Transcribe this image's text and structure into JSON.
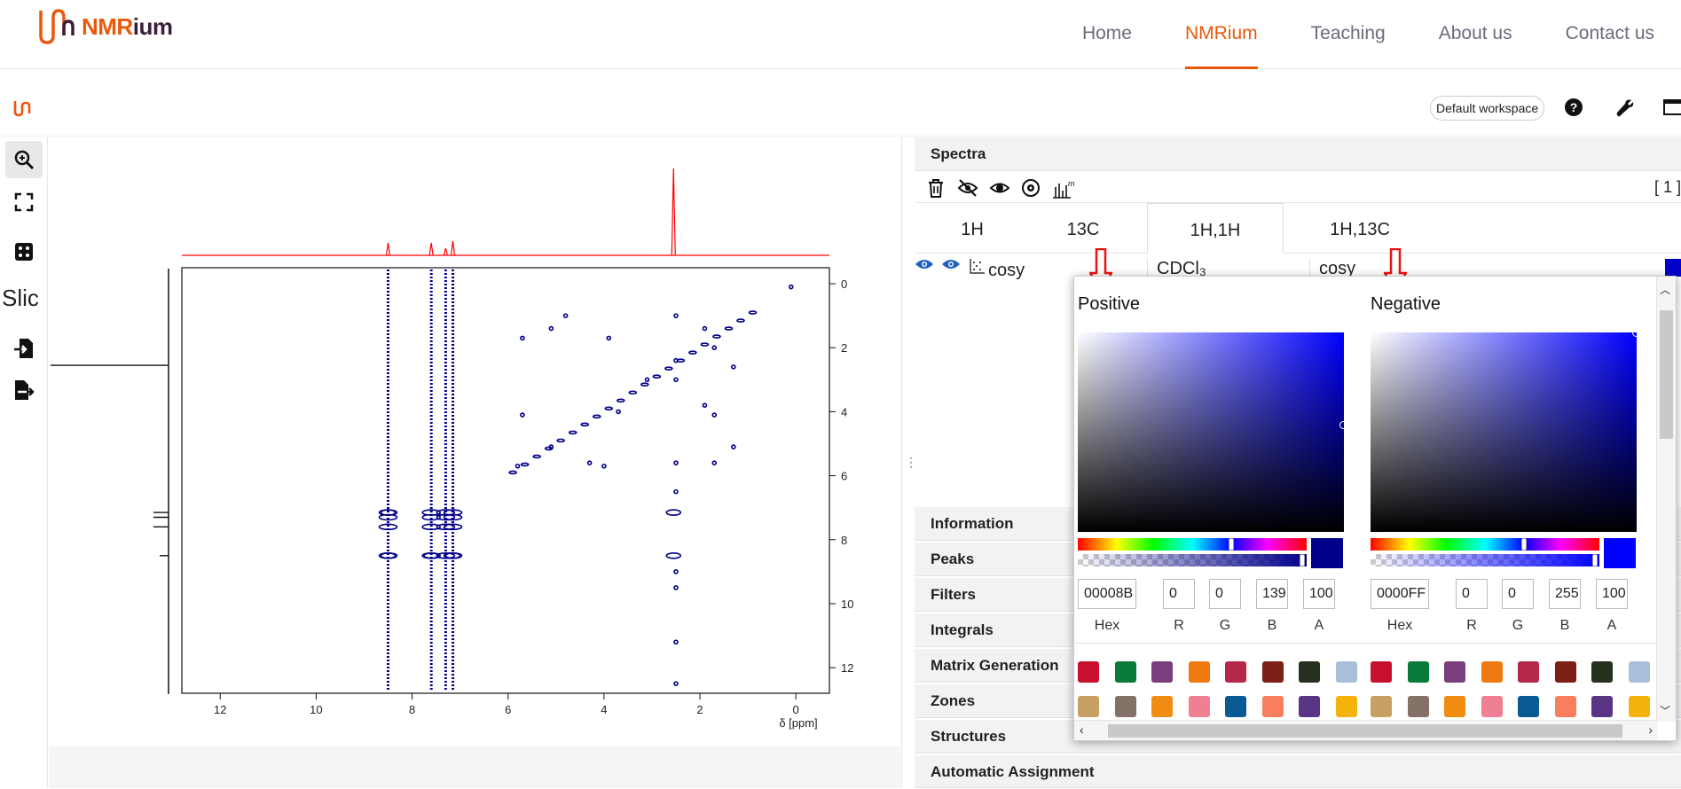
{
  "site": {
    "brand_main": "NMR",
    "brand_suffix": "ium",
    "nav": [
      {
        "label": "Home",
        "active": false
      },
      {
        "label": "NMRium",
        "active": true
      },
      {
        "label": "Teaching",
        "active": false
      },
      {
        "label": "About us",
        "active": false
      },
      {
        "label": "Contact us",
        "active": false
      }
    ]
  },
  "app_toolbar": {
    "workspace_label": "Default workspace",
    "icons": [
      "help-icon",
      "wrench-icon",
      "window-icon"
    ]
  },
  "left_tools": [
    {
      "name": "zoom-icon",
      "selected": true
    },
    {
      "name": "full-view-icon",
      "selected": false
    },
    {
      "name": "dice-icon",
      "selected": false
    },
    {
      "name": "slice-tool",
      "text": "Slic"
    },
    {
      "name": "import-icon",
      "selected": false
    },
    {
      "name": "export-icon",
      "selected": false
    }
  ],
  "plot": {
    "x_ticks": [
      "12",
      "10",
      "8",
      "6",
      "4",
      "2",
      "0"
    ],
    "y_ticks": [
      "0",
      "2",
      "4",
      "6",
      "8",
      "10",
      "12"
    ],
    "x_label": "δ [ppm]"
  },
  "chart_data": {
    "type": "scatter",
    "xlabel": "δ [ppm]",
    "ylabel": "",
    "xlim": [
      12.8,
      -0.7
    ],
    "ylim": [
      -0.5,
      12.8
    ],
    "projection_peaks_ppm": [
      8.5,
      7.6,
      7.3,
      7.15,
      2.55
    ]
  },
  "panel": {
    "spectra_title": "Spectra",
    "count": "[ 1 ]",
    "toolbar_icons": [
      "trash-icon",
      "hide-all-icon",
      "show-all-icon",
      "settings-icon",
      "add-spectrum-icon"
    ],
    "tabs": [
      {
        "label": "1H",
        "active": false
      },
      {
        "label": "13C",
        "active": false
      },
      {
        "label": "1H,1H",
        "active": true
      },
      {
        "label": "1H,13C",
        "active": false
      }
    ],
    "spectrum_row": {
      "name": "cosy",
      "solvent": "CDCl₃",
      "experiment": "cosy"
    },
    "accordions": [
      "Information",
      "Peaks",
      "Filters",
      "Integrals",
      "Matrix Generation",
      "Zones",
      "Structures",
      "Automatic Assignment"
    ]
  },
  "color_picker": {
    "positive": {
      "title": "Positive",
      "hex": "00008B",
      "r": "0",
      "g": "0",
      "b": "139",
      "a": "100",
      "color": "#00008B"
    },
    "negative": {
      "title": "Negative",
      "hex": "0000FF",
      "r": "0",
      "g": "0",
      "b": "255",
      "a": "100",
      "color": "#0000FF"
    },
    "field_labels": {
      "hex": "Hex",
      "r": "R",
      "g": "G",
      "b": "B",
      "a": "A"
    },
    "presets": [
      "#c8102e",
      "#0a7a3a",
      "#7a3e7e",
      "#f07a10",
      "#b5284a",
      "#7c1f14",
      "#25301e",
      "#a7bfdb",
      "#c9a064",
      "#847168",
      "#f08c12",
      "#ef7f92",
      "#0a5b93",
      "#f97e5e",
      "#5a3585",
      "#f5b20c"
    ]
  },
  "colors": {
    "accent": "#ea580c",
    "contour": "#00008B",
    "projection_1d": "#ff0000",
    "annotation_arrow": "#e11"
  }
}
